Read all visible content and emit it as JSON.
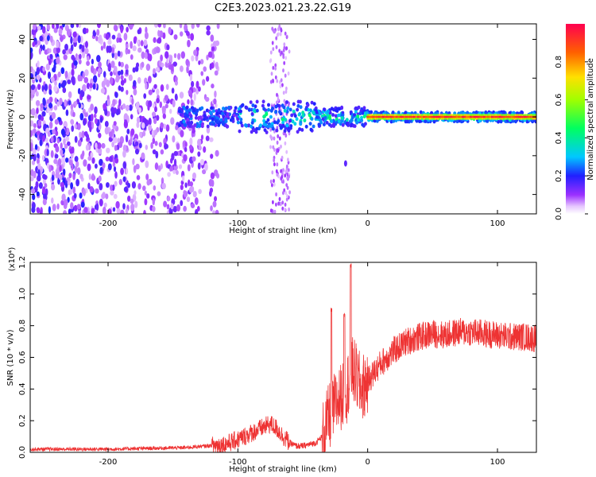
{
  "title": "C2E3.2023.021.23.22.G19",
  "chart_data": [
    {
      "type": "heatmap",
      "title": "C2E3.2023.021.23.22.G19",
      "xlabel": "Height of straight line (km)",
      "ylabel": "Frequency (Hz)",
      "xlim": [
        -260,
        130
      ],
      "ylim": [
        -50,
        48
      ],
      "x_ticks": [
        -200,
        -100,
        0,
        100
      ],
      "x_tick_labels": [
        "-200",
        "-100",
        "0",
        "100"
      ],
      "y_ticks": [
        -40,
        -20,
        0,
        20,
        40
      ],
      "y_tick_labels": [
        "-40",
        "-20",
        "0",
        "20",
        "40"
      ],
      "colorbar": {
        "label": "Normalized spectral amplitude",
        "range": [
          0,
          1
        ],
        "ticks": [
          0,
          0.2,
          0.4,
          0.6,
          0.8
        ],
        "tick_labels": [
          "0.0",
          "0.2",
          "0.4",
          "0.6",
          "0.8"
        ]
      },
      "description_of_pattern": {
        "diffuse_noise_region_x": [
          -260,
          -115
        ],
        "narrow_stripe_x": [
          -75,
          -60
        ],
        "signal_band_center_hz": 0,
        "strong_carrier_start_x": 0,
        "isolated_spot": {
          "x": -17,
          "y": -24
        }
      }
    },
    {
      "type": "line",
      "xlabel": "Height of straight line (km)",
      "ylabel": "SNR (10 * v/v)",
      "y_multiplier_label": "(x10⁴)",
      "xlim": [
        -260,
        130
      ],
      "ylim": [
        0,
        1.2
      ],
      "x_ticks": [
        -200,
        -100,
        0,
        100
      ],
      "x_tick_labels": [
        "-200",
        "-100",
        "0",
        "100"
      ],
      "y_ticks": [
        0,
        0.2,
        0.4,
        0.6,
        0.8,
        1.0,
        1.2
      ],
      "y_tick_labels": [
        "0.0",
        "0.2",
        "0.4",
        "0.6",
        "0.8",
        "1.0",
        "1.2"
      ],
      "series_color": "#ee3333",
      "envelope": {
        "x": [
          -260,
          -200,
          -140,
          -125,
          -110,
          -100,
          -90,
          -80,
          -75,
          -70,
          -65,
          -60,
          -55,
          -50,
          -40,
          -35,
          -30,
          -25,
          -20,
          -16,
          -14,
          -12,
          -10,
          -5,
          0,
          10,
          20,
          30,
          40,
          50,
          60,
          70,
          80,
          90,
          100,
          110,
          120,
          130
        ],
        "y": [
          0.02,
          0.02,
          0.03,
          0.04,
          0.05,
          0.08,
          0.12,
          0.16,
          0.18,
          0.15,
          0.1,
          0.06,
          0.04,
          0.04,
          0.06,
          0.1,
          0.22,
          0.3,
          0.36,
          0.4,
          0.48,
          0.52,
          0.5,
          0.4,
          0.45,
          0.56,
          0.64,
          0.7,
          0.73,
          0.75,
          0.74,
          0.76,
          0.76,
          0.75,
          0.74,
          0.73,
          0.73,
          0.72
        ]
      },
      "spikes": [
        {
          "x": -28,
          "y": 0.92
        },
        {
          "x": -18,
          "y": 0.88
        },
        {
          "x": -13,
          "y": 1.2
        }
      ]
    }
  ]
}
